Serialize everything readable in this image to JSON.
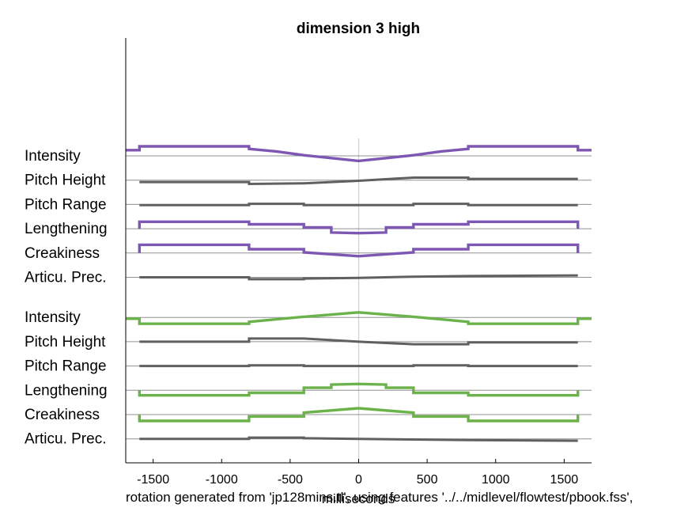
{
  "chart_data": {
    "type": "line",
    "title": "dimension  3 high",
    "xlabel": "milliseconds",
    "footer": "rotation generated from 'jp128mins.tl', using features '../../midlevel/flowtest/pbook.fss',",
    "xlim": [
      -1700,
      1700
    ],
    "x_ticks": [
      "-1500",
      "-1000",
      "-500",
      "0",
      "500",
      "1000",
      "1500"
    ],
    "x_tick_values": [
      -1500,
      -1000,
      -500,
      0,
      500,
      1000,
      1500
    ],
    "vertical_marker_x": 0,
    "grid": false,
    "colors": {
      "purple": "#7e57b4",
      "green": "#6cb24a",
      "gray": "#606060",
      "baseline": "#909090",
      "marker": "#d0d0d0"
    },
    "groups": [
      {
        "highlight_color": "purple",
        "features": [
          {
            "label": "Intensity",
            "color": "purple",
            "extends_full_range": true,
            "points": [
              [
                -1700,
                0.9
              ],
              [
                -1600,
                0.9
              ],
              [
                -1600,
                1.5
              ],
              [
                -800,
                1.5
              ],
              [
                -800,
                1.1
              ],
              [
                -600,
                0.7
              ],
              [
                -400,
                0.1
              ],
              [
                0,
                -0.8
              ],
              [
                400,
                0.1
              ],
              [
                600,
                0.7
              ],
              [
                800,
                1.1
              ],
              [
                800,
                1.5
              ],
              [
                1600,
                1.5
              ],
              [
                1600,
                0.9
              ],
              [
                1700,
                0.9
              ]
            ]
          },
          {
            "label": "Pitch Height",
            "color": "gray",
            "extends_full_range": false,
            "points": [
              [
                -1600,
                -0.3
              ],
              [
                -800,
                -0.3
              ],
              [
                -800,
                -0.6
              ],
              [
                -400,
                -0.5
              ],
              [
                0,
                -0.1
              ],
              [
                400,
                0.4
              ],
              [
                800,
                0.4
              ],
              [
                800,
                0.2
              ],
              [
                1600,
                0.2
              ]
            ]
          },
          {
            "label": "Pitch Range",
            "color": "gray",
            "extends_full_range": false,
            "points": [
              [
                -1600,
                -0.1
              ],
              [
                -800,
                -0.1
              ],
              [
                -800,
                0.1
              ],
              [
                -400,
                0.1
              ],
              [
                -400,
                -0.1
              ],
              [
                0,
                -0.1
              ],
              [
                400,
                -0.1
              ],
              [
                400,
                0.1
              ],
              [
                800,
                0.1
              ],
              [
                800,
                -0.1
              ],
              [
                1600,
                -0.1
              ]
            ]
          },
          {
            "label": "Lengthening",
            "color": "purple",
            "extends_full_range": false,
            "points": [
              [
                -1600,
                0
              ],
              [
                -1600,
                1.1
              ],
              [
                -800,
                1.1
              ],
              [
                -800,
                0.7
              ],
              [
                -400,
                0.7
              ],
              [
                -400,
                0.2
              ],
              [
                -200,
                0.2
              ],
              [
                -200,
                -0.6
              ],
              [
                0,
                -0.7
              ],
              [
                200,
                -0.6
              ],
              [
                200,
                0.2
              ],
              [
                400,
                0.2
              ],
              [
                400,
                0.7
              ],
              [
                800,
                0.7
              ],
              [
                800,
                1.1
              ],
              [
                1600,
                1.1
              ],
              [
                1600,
                0
              ]
            ]
          },
          {
            "label": "Creakiness",
            "color": "purple",
            "extends_full_range": false,
            "points": [
              [
                -1600,
                0
              ],
              [
                -1600,
                1.3
              ],
              [
                -800,
                1.3
              ],
              [
                -800,
                0.6
              ],
              [
                -400,
                0.6
              ],
              [
                -400,
                0.1
              ],
              [
                0,
                -0.5
              ],
              [
                400,
                0.1
              ],
              [
                400,
                0.6
              ],
              [
                800,
                0.6
              ],
              [
                800,
                1.3
              ],
              [
                1600,
                1.3
              ],
              [
                1600,
                0
              ]
            ]
          },
          {
            "label": "Articu. Prec.",
            "color": "gray",
            "extends_full_range": false,
            "points": [
              [
                -1600,
                0
              ],
              [
                -800,
                0
              ],
              [
                -800,
                -0.3
              ],
              [
                -400,
                -0.3
              ],
              [
                -400,
                -0.2
              ],
              [
                0,
                -0.1
              ],
              [
                400,
                0.1
              ],
              [
                800,
                0.2
              ],
              [
                1600,
                0.3
              ]
            ]
          }
        ]
      },
      {
        "highlight_color": "green",
        "features": [
          {
            "label": "Intensity",
            "color": "green",
            "extends_full_range": true,
            "points": [
              [
                -1700,
                -0.2
              ],
              [
                -1600,
                -0.2
              ],
              [
                -1600,
                -1.0
              ],
              [
                -800,
                -1.0
              ],
              [
                -800,
                -0.7
              ],
              [
                -600,
                -0.3
              ],
              [
                -400,
                0.1
              ],
              [
                0,
                0.8
              ],
              [
                400,
                0.1
              ],
              [
                600,
                -0.3
              ],
              [
                800,
                -0.7
              ],
              [
                800,
                -1.0
              ],
              [
                1600,
                -1.0
              ],
              [
                1600,
                -0.2
              ],
              [
                1700,
                -0.2
              ]
            ]
          },
          {
            "label": "Pitch Height",
            "color": "gray",
            "extends_full_range": false,
            "points": [
              [
                -1600,
                0
              ],
              [
                -800,
                0
              ],
              [
                -800,
                0.5
              ],
              [
                -400,
                0.5
              ],
              [
                0,
                0.0
              ],
              [
                400,
                -0.4
              ],
              [
                800,
                -0.4
              ],
              [
                800,
                -0.1
              ],
              [
                1600,
                -0.1
              ]
            ]
          },
          {
            "label": "Pitch Range",
            "color": "gray",
            "extends_full_range": false,
            "points": [
              [
                -1600,
                0
              ],
              [
                -800,
                0
              ],
              [
                -800,
                0.1
              ],
              [
                -400,
                0.1
              ],
              [
                -400,
                0.0
              ],
              [
                400,
                0.0
              ],
              [
                400,
                0.1
              ],
              [
                800,
                0.1
              ],
              [
                800,
                0.0
              ],
              [
                1600,
                0.0
              ]
            ]
          },
          {
            "label": "Lengthening",
            "color": "green",
            "extends_full_range": false,
            "points": [
              [
                -1600,
                0
              ],
              [
                -1600,
                -0.8
              ],
              [
                -800,
                -0.8
              ],
              [
                -800,
                -0.4
              ],
              [
                -400,
                -0.4
              ],
              [
                -400,
                0.4
              ],
              [
                -200,
                0.4
              ],
              [
                -200,
                0.9
              ],
              [
                0,
                1.0
              ],
              [
                200,
                0.9
              ],
              [
                200,
                0.4
              ],
              [
                400,
                0.4
              ],
              [
                400,
                -0.4
              ],
              [
                800,
                -0.4
              ],
              [
                800,
                -0.8
              ],
              [
                1600,
                -0.8
              ],
              [
                1600,
                0
              ]
            ]
          },
          {
            "label": "Creakiness",
            "color": "green",
            "extends_full_range": false,
            "points": [
              [
                -1600,
                0
              ],
              [
                -1600,
                -1.0
              ],
              [
                -800,
                -1.0
              ],
              [
                -800,
                -0.3
              ],
              [
                -400,
                -0.3
              ],
              [
                -400,
                0.3
              ],
              [
                0,
                1.0
              ],
              [
                400,
                0.3
              ],
              [
                400,
                -0.3
              ],
              [
                800,
                -0.3
              ],
              [
                800,
                -1.0
              ],
              [
                1600,
                -1.0
              ],
              [
                1600,
                0
              ]
            ]
          },
          {
            "label": "Articu. Prec.",
            "color": "gray",
            "extends_full_range": false,
            "points": [
              [
                -1600,
                0
              ],
              [
                -800,
                0
              ],
              [
                -800,
                0.2
              ],
              [
                -400,
                0.2
              ],
              [
                -400,
                0.1
              ],
              [
                0,
                0.0
              ],
              [
                400,
                -0.1
              ],
              [
                800,
                -0.2
              ],
              [
                1600,
                -0.3
              ]
            ]
          }
        ]
      }
    ]
  }
}
